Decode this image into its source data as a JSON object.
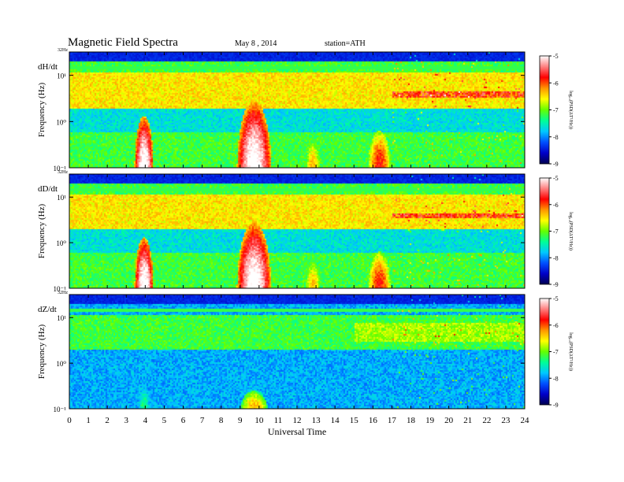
{
  "header": {
    "title": "Magnetic  Field  Spectra",
    "date": "May 8  , 2014",
    "station": "station=ATH"
  },
  "colors": {
    "colormap": [
      "#000050",
      "#0000c8",
      "#0050ff",
      "#00c8ff",
      "#00ff96",
      "#64ff00",
      "#ffff00",
      "#ff9600",
      "#ff0000",
      "#ff8080",
      "#ffffff"
    ]
  },
  "chart_data": [
    {
      "type": "heatmap",
      "panel_label": "dH/dt",
      "ylabel": "Frequency  (Hz)",
      "y_top_label": "32Hz",
      "y_tick_labels": [
        "10¹",
        "10⁰",
        "10⁻¹"
      ],
      "y_ticks": [
        10,
        1,
        0.1
      ],
      "ylim": [
        0.1,
        32
      ],
      "y_scale": "log",
      "xlim": [
        0,
        24
      ],
      "colorbar": {
        "label": "log₁₀(PSD(ΔT²/Hz))",
        "ticks": [
          -5,
          -6,
          -7,
          -8,
          -9
        ],
        "range": [
          -9,
          -5
        ]
      },
      "features": [
        {
          "name": "enhancement",
          "t_center": 3.9,
          "t_width": 0.5,
          "f_max": 1.2,
          "level": -5.0
        },
        {
          "name": "enhancement",
          "t_center": 9.7,
          "t_width": 0.9,
          "f_max": 2.5,
          "level": -5.0
        },
        {
          "name": "enhancement",
          "t_center": 12.8,
          "t_width": 0.4,
          "f_max": 0.4,
          "level": -6.5
        },
        {
          "name": "enhancement",
          "t_center": 16.3,
          "t_width": 0.6,
          "f_max": 0.6,
          "level": -6.0
        },
        {
          "name": "band",
          "t_start": 17,
          "t_end": 24,
          "f": 4,
          "level": -6.0
        }
      ]
    },
    {
      "type": "heatmap",
      "panel_label": "dD/dt",
      "ylabel": "Frequency  (Hz)",
      "y_top_label": "32Hz",
      "y_tick_labels": [
        "10¹",
        "10⁰",
        "10⁻¹"
      ],
      "y_ticks": [
        10,
        1,
        0.1
      ],
      "ylim": [
        0.1,
        32
      ],
      "y_scale": "log",
      "xlim": [
        0,
        24
      ],
      "colorbar": {
        "label": "log₁₀(PSD(ΔT²/Hz))",
        "ticks": [
          -5,
          -6,
          -7,
          -8,
          -9
        ],
        "range": [
          -9,
          -5
        ]
      },
      "features": [
        {
          "name": "enhancement",
          "t_center": 3.9,
          "t_width": 0.5,
          "f_max": 1.2,
          "level": -5.0
        },
        {
          "name": "enhancement",
          "t_center": 9.7,
          "t_width": 0.9,
          "f_max": 2.5,
          "level": -5.0
        },
        {
          "name": "enhancement",
          "t_center": 12.8,
          "t_width": 0.4,
          "f_max": 0.4,
          "level": -6.5
        },
        {
          "name": "enhancement",
          "t_center": 16.3,
          "t_width": 0.6,
          "f_max": 0.6,
          "level": -6.0
        },
        {
          "name": "band",
          "t_start": 17,
          "t_end": 24,
          "f": 4,
          "level": -6.0
        }
      ]
    },
    {
      "type": "heatmap",
      "panel_label": "dZ/dt",
      "ylabel": "Frequency  (Hz)",
      "y_top_label": "32Hz",
      "y_tick_labels": [
        "10¹",
        "10⁰",
        "10⁻¹"
      ],
      "y_ticks": [
        10,
        1,
        0.1
      ],
      "ylim": [
        0.1,
        32
      ],
      "y_scale": "log",
      "xlim": [
        0,
        24
      ],
      "xlabel": "Universal  Time",
      "x_ticks": [
        0,
        1,
        2,
        3,
        4,
        5,
        6,
        7,
        8,
        9,
        10,
        11,
        12,
        13,
        14,
        15,
        16,
        17,
        18,
        19,
        20,
        21,
        22,
        23,
        24
      ],
      "colorbar": {
        "label": "log₁₀(PSD(ΔT²/Hz))",
        "ticks": [
          -5,
          -6,
          -7,
          -8,
          -9
        ],
        "range": [
          -9,
          -5
        ]
      },
      "features": [
        {
          "name": "enhancement",
          "t_center": 3.9,
          "t_width": 0.3,
          "f_max": 0.3,
          "level": -7.5
        },
        {
          "name": "enhancement",
          "t_center": 9.7,
          "t_width": 0.7,
          "f_max": 0.25,
          "level": -6.5
        }
      ]
    }
  ]
}
